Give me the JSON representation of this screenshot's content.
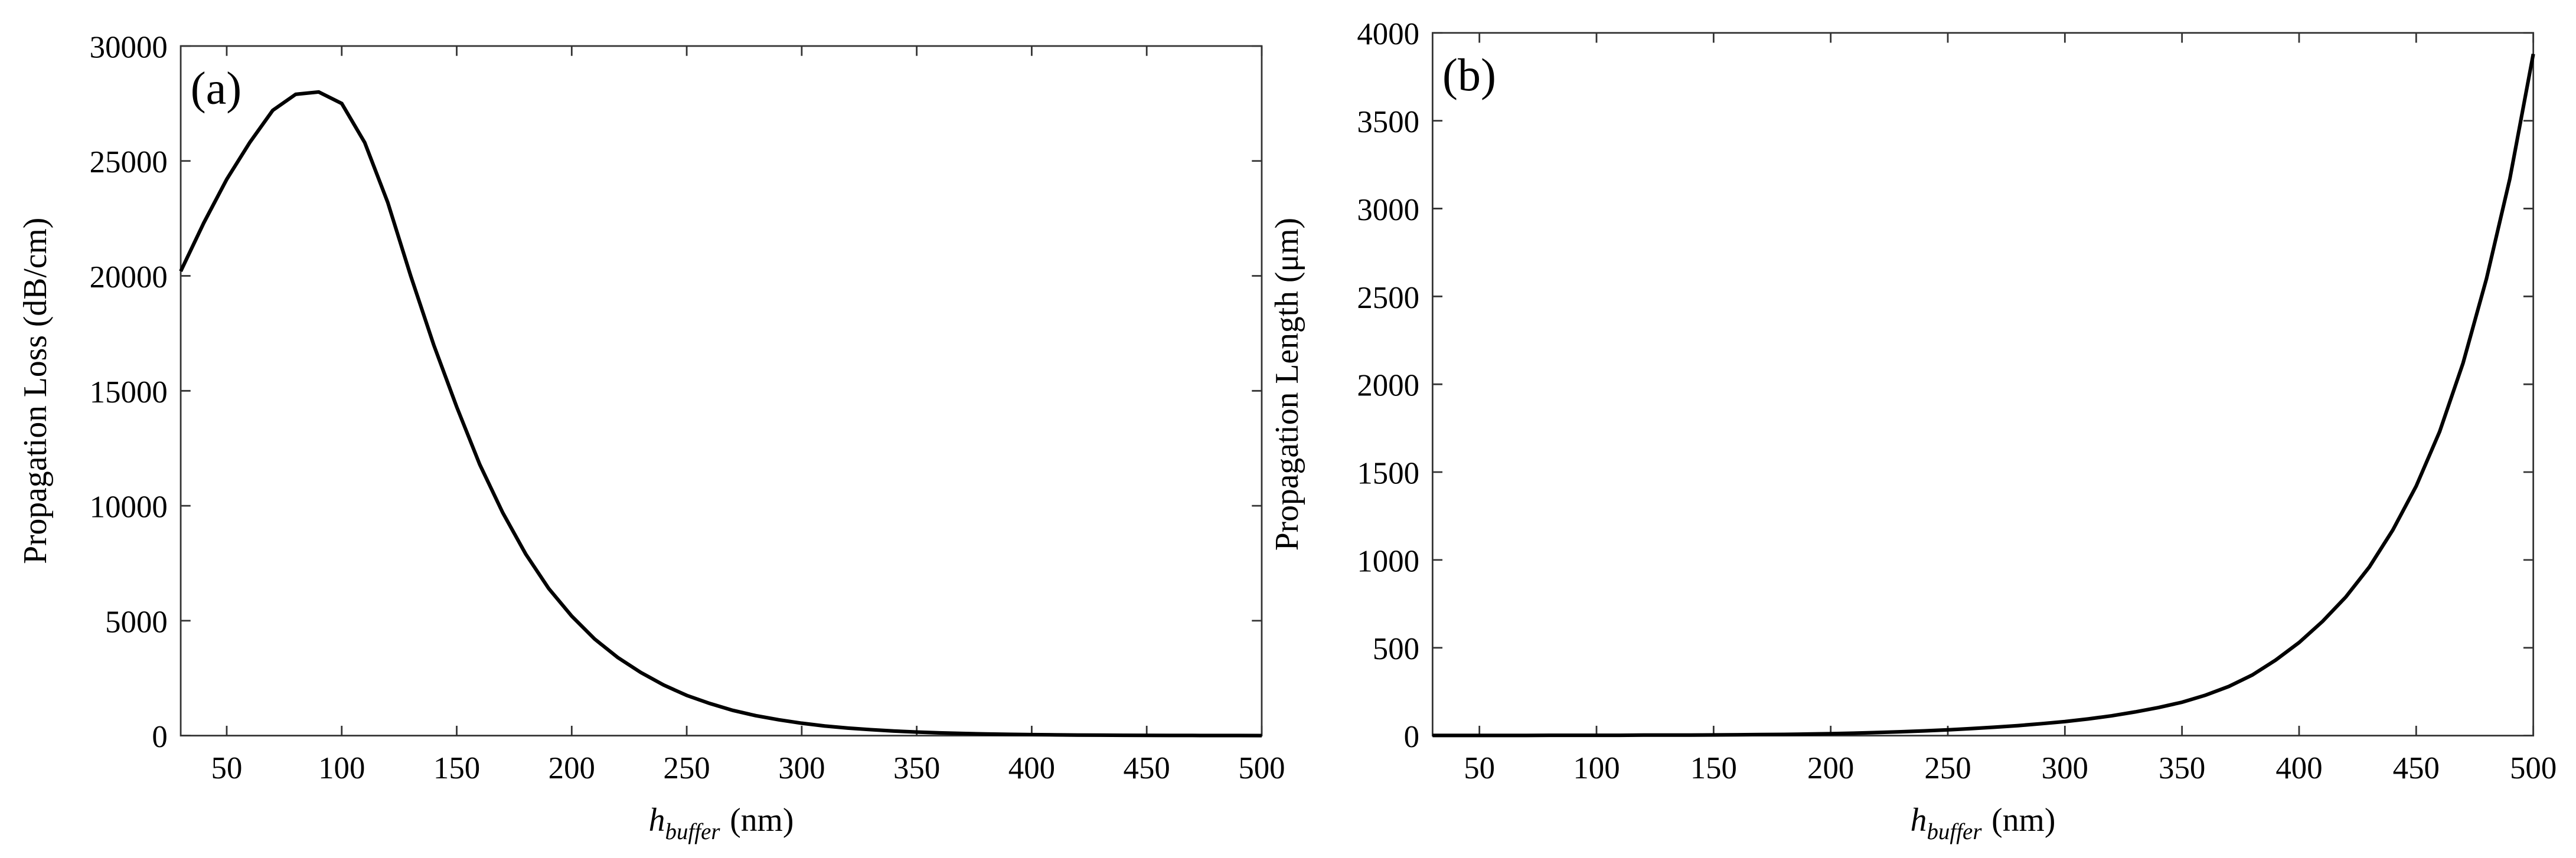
{
  "chart_data": [
    {
      "type": "line",
      "panel_label": "(a)",
      "ylabel": "Propagation Loss (dB/cm)",
      "xlabel": {
        "main": "h",
        "sub": "buffer",
        "unit": "(nm)"
      },
      "x": [
        30,
        40,
        50,
        60,
        70,
        80,
        90,
        100,
        110,
        120,
        130,
        140,
        150,
        160,
        170,
        180,
        190,
        200,
        210,
        220,
        230,
        240,
        250,
        260,
        270,
        280,
        290,
        300,
        310,
        320,
        330,
        340,
        350,
        360,
        370,
        380,
        390,
        400,
        410,
        420,
        430,
        440,
        450,
        460,
        470,
        480,
        490,
        500
      ],
      "values": [
        20200,
        22300,
        24200,
        25800,
        27200,
        27900,
        28000,
        27500,
        25800,
        23200,
        20000,
        17000,
        14300,
        11800,
        9700,
        7900,
        6400,
        5200,
        4200,
        3400,
        2750,
        2200,
        1750,
        1400,
        1100,
        870,
        690,
        540,
        420,
        330,
        260,
        200,
        155,
        120,
        95,
        73,
        57,
        44,
        34,
        26,
        20,
        16,
        12,
        9,
        7,
        5,
        4,
        3
      ],
      "color": "#000000",
      "xlim": [
        30,
        500
      ],
      "xticks": [
        50,
        100,
        150,
        200,
        250,
        300,
        350,
        400,
        450,
        500
      ],
      "ylim": [
        0,
        30000
      ],
      "yticks": [
        0,
        5000,
        10000,
        15000,
        20000,
        25000,
        30000
      ]
    },
    {
      "type": "line",
      "panel_label": "(b)",
      "ylabel": "Propagation Length (μm)",
      "xlabel": {
        "main": "h",
        "sub": "buffer",
        "unit": "(nm)"
      },
      "x": [
        30,
        40,
        50,
        60,
        70,
        80,
        90,
        100,
        110,
        120,
        130,
        140,
        150,
        160,
        170,
        180,
        190,
        200,
        210,
        220,
        230,
        240,
        250,
        260,
        270,
        280,
        290,
        300,
        310,
        320,
        330,
        340,
        350,
        360,
        370,
        380,
        390,
        400,
        410,
        420,
        430,
        440,
        450,
        460,
        470,
        480,
        490,
        500
      ],
      "values": [
        1,
        1,
        1,
        1,
        1,
        2,
        2,
        2,
        2,
        3,
        3,
        3,
        4,
        5,
        6,
        7,
        9,
        11,
        14,
        18,
        22,
        27,
        33,
        40,
        48,
        57,
        68,
        80,
        95,
        113,
        135,
        160,
        190,
        230,
        280,
        345,
        430,
        530,
        650,
        790,
        960,
        1170,
        1420,
        1730,
        2120,
        2600,
        3170,
        3880
      ],
      "color": "#000000",
      "xlim": [
        30,
        500
      ],
      "xticks": [
        50,
        100,
        150,
        200,
        250,
        300,
        350,
        400,
        450,
        500
      ],
      "ylim": [
        0,
        4000
      ],
      "yticks": [
        0,
        500,
        1000,
        1500,
        2000,
        2500,
        3000,
        3500,
        4000
      ]
    }
  ]
}
